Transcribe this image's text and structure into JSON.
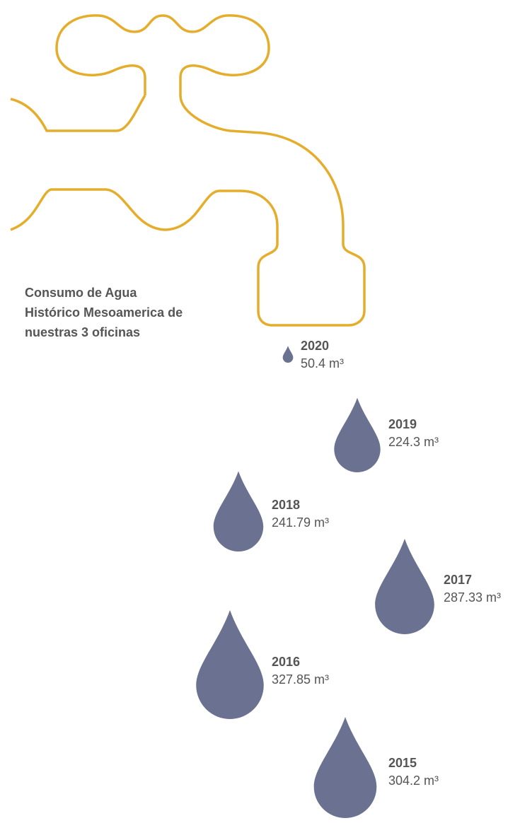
{
  "chart_data": {
    "type": "drop",
    "title": "Consumo de Agua Histórico Mesoamerica de nuestras 3 oficinas",
    "categories": [
      "2020",
      "2019",
      "2018",
      "2017",
      "2016",
      "2015"
    ],
    "values": [
      50.4,
      224.3,
      241.79,
      287.33,
      327.85,
      304.2
    ],
    "value_labels": [
      "50.4 m³",
      "224.3 m³",
      "241.79 m³",
      "287.33 m³",
      "327.85 m³",
      "304.2 m³"
    ],
    "color": "#6b7190"
  }
}
